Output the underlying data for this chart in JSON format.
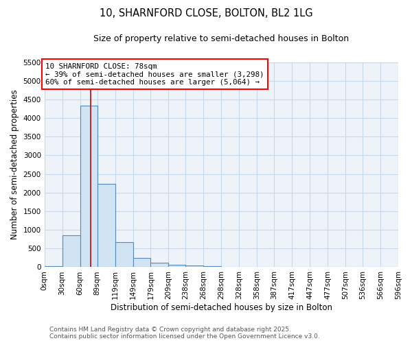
{
  "title": "10, SHARNFORD CLOSE, BOLTON, BL2 1LG",
  "subtitle": "Size of property relative to semi-detached houses in Bolton",
  "xlabel": "Distribution of semi-detached houses by size in Bolton",
  "ylabel": "Number of semi-detached properties",
  "bar_color": "#d0e4f4",
  "bar_edge_color": "#5588bb",
  "plot_bg_color": "#eef3fa",
  "fig_bg_color": "#ffffff",
  "grid_color": "#c8d8ec",
  "property_size": 78,
  "vline_color": "#cc0000",
  "annotation_text_line1": "10 SHARNFORD CLOSE: 78sqm",
  "annotation_text_line2": "← 39% of semi-detached houses are smaller (3,298)",
  "annotation_text_line3": "60% of semi-detached houses are larger (5,064) →",
  "bin_edges": [
    0,
    30,
    60,
    89,
    119,
    149,
    179,
    209,
    238,
    268,
    298,
    328,
    358,
    387,
    417,
    447,
    477,
    507,
    536,
    566,
    596
  ],
  "bar_heights": [
    30,
    855,
    4330,
    2240,
    675,
    250,
    120,
    65,
    50,
    30,
    5,
    3,
    2,
    1,
    1,
    0,
    0,
    0,
    0,
    0
  ],
  "ylim": [
    0,
    5500
  ],
  "yticks": [
    0,
    500,
    1000,
    1500,
    2000,
    2500,
    3000,
    3500,
    4000,
    4500,
    5000,
    5500
  ],
  "tick_labels": [
    "0sqm",
    "30sqm",
    "60sqm",
    "89sqm",
    "119sqm",
    "149sqm",
    "179sqm",
    "209sqm",
    "238sqm",
    "268sqm",
    "298sqm",
    "328sqm",
    "358sqm",
    "387sqm",
    "417sqm",
    "447sqm",
    "477sqm",
    "507sqm",
    "536sqm",
    "566sqm",
    "596sqm"
  ],
  "footer_line1": "Contains HM Land Registry data © Crown copyright and database right 2025.",
  "footer_line2": "Contains public sector information licensed under the Open Government Licence v3.0.",
  "title_fontsize": 10.5,
  "subtitle_fontsize": 9,
  "annotation_fontsize": 7.8,
  "footer_fontsize": 6.5,
  "axis_label_fontsize": 8.5,
  "tick_fontsize": 7.5
}
